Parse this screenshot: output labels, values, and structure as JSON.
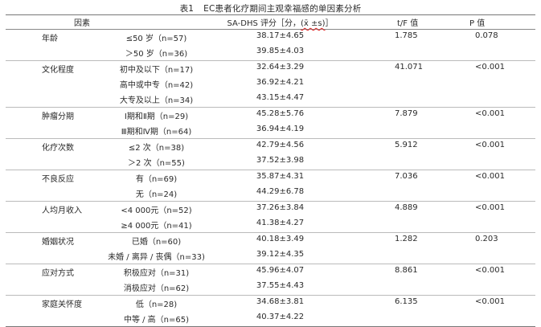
{
  "caption": {
    "number": "表1",
    "text": "EC患者化疗期间主观幸福感的单因素分析"
  },
  "headers": {
    "factor": "因素",
    "score_prefix": "SA-DHS 评分［分，",
    "score_symbol": "(x̄ ±s)",
    "score_suffix": "］",
    "t": "t/F 值",
    "p": "P 值"
  },
  "groups": [
    {
      "factor": "年龄",
      "t": "1.785",
      "p": "0.078",
      "rows": [
        {
          "level": "≤50 岁（n=57)",
          "score": "38.17±4.65"
        },
        {
          "level": "＞50 岁（n=36)",
          "score": "39.85±4.03"
        }
      ]
    },
    {
      "factor": "文化程度",
      "t": "41.071",
      "p": "<0.001",
      "rows": [
        {
          "level": "初中及以下（n=17)",
          "score": "32.64±3.29"
        },
        {
          "level": "高中或中专（n=42)",
          "score": "36.92±4.21"
        },
        {
          "level": "大专及以上（n=34)",
          "score": "43.15±4.47"
        }
      ]
    },
    {
      "factor": "肿瘤分期",
      "t": "7.879",
      "p": "<0.001",
      "rows": [
        {
          "level": "Ⅰ期和Ⅱ期（n=29)",
          "score": "45.28±5.76"
        },
        {
          "level": "Ⅲ期和Ⅳ期（n=64)",
          "score": "36.94±4.19"
        }
      ]
    },
    {
      "factor": "化疗次数",
      "t": "5.912",
      "p": "<0.001",
      "rows": [
        {
          "level": "≤2 次（n=38)",
          "score": "42.79±4.56"
        },
        {
          "level": "＞2 次（n=55)",
          "score": "37.52±3.98"
        }
      ]
    },
    {
      "factor": "不良反应",
      "t": "7.036",
      "p": "<0.001",
      "rows": [
        {
          "level": "有（n=69)",
          "score": "35.87±4.31"
        },
        {
          "level": "无（n=24)",
          "score": "44.29±6.78"
        }
      ]
    },
    {
      "factor": "人均月收入",
      "t": "4.889",
      "p": "<0.001",
      "rows": [
        {
          "level": "<4 000元（n=52)",
          "score": "37.26±3.84"
        },
        {
          "level": "≥4 000元（n=41)",
          "score": "41.38±4.27"
        }
      ]
    },
    {
      "factor": "婚姻状况",
      "t": "1.282",
      "p": "0.203",
      "rows": [
        {
          "level": "已婚（n=60)",
          "score": "40.18±3.49"
        },
        {
          "level": "未婚 / 离异 / 丧偶（n=33)",
          "score": "39.12±4.35"
        }
      ]
    },
    {
      "factor": "应对方式",
      "t": "8.861",
      "p": "<0.001",
      "rows": [
        {
          "level": "积极应对（n=31)",
          "score": "45.96±4.07"
        },
        {
          "level": "消极应对（n=62)",
          "score": "37.55±4.43"
        }
      ]
    },
    {
      "factor": "家庭关怀度",
      "t": "6.135",
      "p": "<0.001",
      "rows": [
        {
          "level": "低（n=28)",
          "score": "34.68±3.81"
        },
        {
          "level": "中等 / 高（n=65)",
          "score": "40.37±4.22"
        }
      ]
    }
  ]
}
